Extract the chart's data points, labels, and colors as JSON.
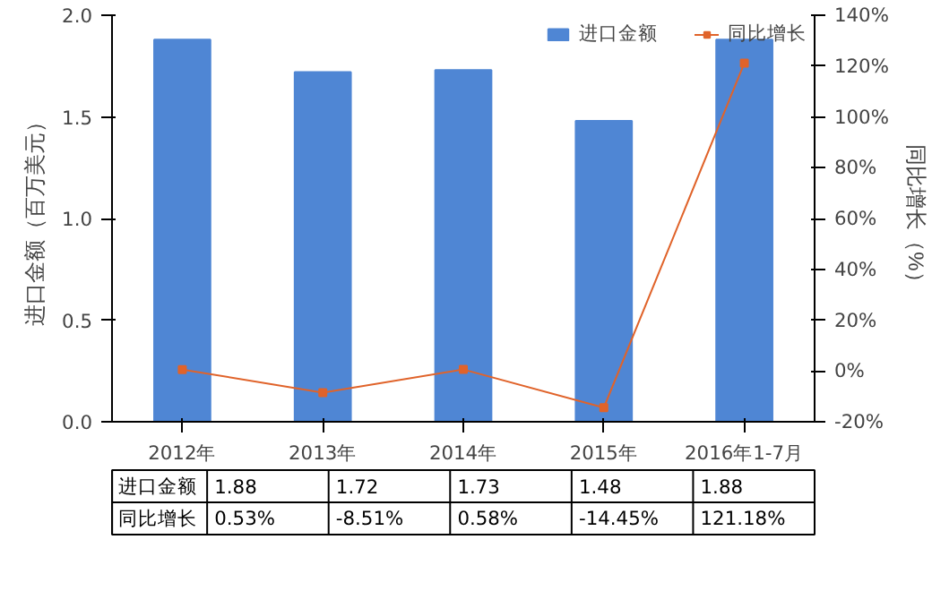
{
  "chart_data": {
    "type": "bar",
    "categories": [
      "2012年",
      "2013年",
      "2014年",
      "2015年",
      "2016年1-7月"
    ],
    "ylabel": "进口金额（百万美元）",
    "y2label": "同比增长（%）",
    "ylim": [
      0,
      2
    ],
    "yticks": [
      {
        "value": 0,
        "label": "0.0"
      },
      {
        "value": 0.5,
        "label": "0.5"
      },
      {
        "value": 1,
        "label": "1.0"
      },
      {
        "value": 1.5,
        "label": "1.5"
      },
      {
        "value": 2,
        "label": "2.0"
      }
    ],
    "y2lim": [
      -20,
      140
    ],
    "y2ticks": [
      {
        "value": -20,
        "label": "-20%"
      },
      {
        "value": 0,
        "label": "0%"
      },
      {
        "value": 20,
        "label": "20%"
      },
      {
        "value": 40,
        "label": "40%"
      },
      {
        "value": 60,
        "label": "60%"
      },
      {
        "value": 80,
        "label": "80%"
      },
      {
        "value": 100,
        "label": "100%"
      },
      {
        "value": 120,
        "label": "120%"
      },
      {
        "value": 140,
        "label": "140%"
      }
    ],
    "legend": "top right",
    "marker": "square",
    "series": [
      {
        "name": "进口金额",
        "color": "#4f86d4",
        "values": [
          1.88,
          1.72,
          1.73,
          1.48,
          1.88
        ],
        "value_labels": [
          "1.88",
          "1.72",
          "1.73",
          "1.48",
          "1.88"
        ]
      },
      {
        "name": "同比增长",
        "type": "line",
        "axis": "y2",
        "color": "#e0632a",
        "values": [
          0.53,
          -8.51,
          0.58,
          -14.45,
          121.18
        ],
        "value_labels": [
          "0.53%",
          "-8.51%",
          "0.58%",
          "-14.45%",
          "121.18%"
        ]
      }
    ]
  }
}
